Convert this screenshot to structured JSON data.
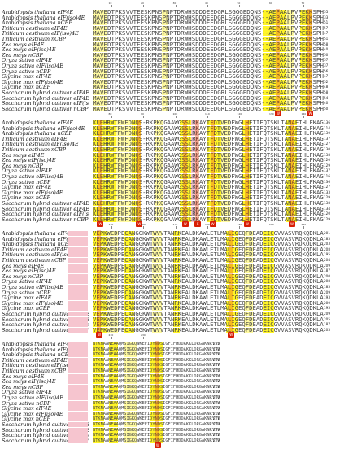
{
  "species": [
    "Arabidopsis thaliana eIF4E",
    "Arabidopsis thaliana eIF(iso)4E",
    "Arabidopsis thaliana nCBP",
    "Triticum aestivum eIF4E",
    "Triticum aestivum eIF(iso)4E",
    "Triticum aestivum nCBP",
    "Zea mays eIF4E",
    "Zea mays eIF(iso)4E",
    "Zea mays nCBP",
    "Oryza sativa eIF4E",
    "Oryza sativa eIF(iso)4E",
    "Oryza sativa nCBP",
    "Glycine max eIF4E",
    "Glycine max eIF(iso)4E",
    "Glycine max nCBP",
    "Saccharum hybrid cultivar eIF4Ea",
    "Saccharum hybrid cultivar eIF4Eb",
    "Saccharum hybrid cultivar eIF(iso)4E",
    "Saccharum hybrid cultivar nCBP"
  ],
  "blocks": [
    {
      "ruler": [
        "10",
        "20",
        "30",
        "40",
        "50",
        "60",
        "70"
      ],
      "end_numbers": [
        "55",
        "33",
        "51",
        "57",
        "47",
        "51",
        "58",
        "40",
        "50",
        "57",
        "37",
        "56",
        "47",
        "52",
        "48",
        "58",
        "54",
        "40",
        "50"
      ],
      "markers": [
        "W",
        "W"
      ],
      "sequence": "MAVEDTPKSVVTEESKPNSPNPTDRWHSDDDEEDGRLSGGGEDQNS--AEPAALPVPEKKSPH"
    },
    {
      "ruler": [
        "80",
        "90",
        "100",
        "110",
        "120",
        "130",
        "140"
      ],
      "end_numbers": [
        "136",
        "114",
        "130",
        "137",
        "127",
        "130",
        "138",
        "120",
        "129",
        "137",
        "116",
        "136",
        "127",
        "133",
        "129",
        "138",
        "134",
        "120",
        "129"
      ],
      "markers": [
        "W",
        "W",
        "W",
        "E",
        "W",
        "W",
        "W"
      ],
      "sequence": "KLEHRWTFWFDNQS-RKPKQGAAWGSSLRKAYTFDTVEDFWGLHETIFQTSKLTANAEIHLFKAG"
    },
    {
      "ruler": [
        "150",
        "160",
        "170",
        "180",
        "190",
        "200",
        "210"
      ],
      "end_numbers": [
        "201",
        "183",
        "203",
        "208",
        "195",
        "204",
        "209",
        "187",
        "200",
        "208",
        "185",
        "209",
        "193",
        "200",
        "195",
        "209",
        "205",
        "187",
        "203"
      ],
      "markers": [
        "W",
        "W"
      ],
      "sequence": "VEPKWEDPECANGGKWTWVVTANRKEALDKAWLETLMALIGEQFDEADEICGVVASVRQKQDKLA"
    },
    {
      "ruler": [
        "220",
        "230"
      ],
      "end_numbers": [
        "235",
        "198",
        "221",
        "236",
        "207",
        "225",
        "234",
        "202",
        "218",
        "240",
        "200",
        "224",
        "219",
        "218",
        "221",
        "240",
        "239",
        "202",
        "229"
      ],
      "markers": [
        "W"
      ],
      "sequence": "WTKNAANEAAQMSIGKQWKEFIDYNDSIGFIFHDDAKKLDRGAKNRYTV"
    }
  ]
}
